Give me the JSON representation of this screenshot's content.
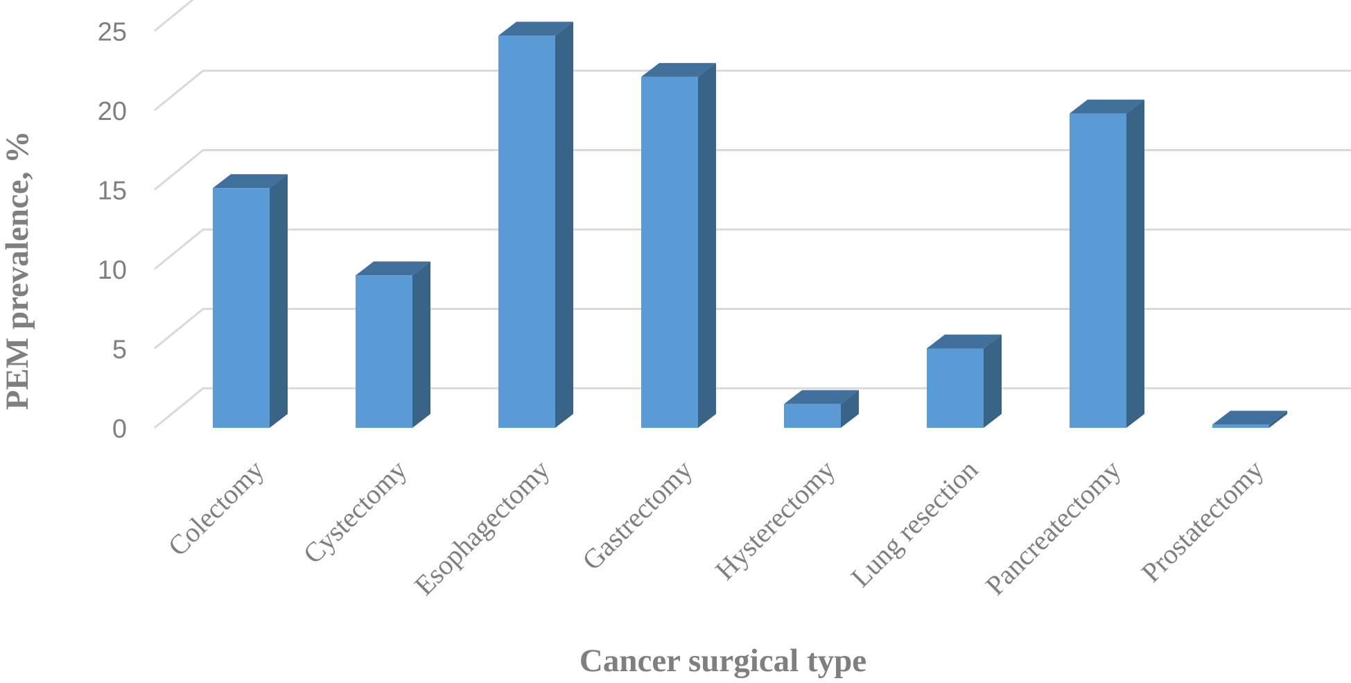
{
  "chart_data": {
    "type": "bar",
    "style": "3d-column",
    "title": "",
    "xlabel": "Cancer surgical type",
    "ylabel": "PEM prevalence, %",
    "categories": [
      "Colectomy",
      "Cystectomy",
      "Esophagectomy",
      "Gastrectomy",
      "Hysterectomy",
      "Lung resection",
      "Pancreatectomy",
      "Prostatectomy"
    ],
    "values": [
      15.1,
      9.6,
      24.7,
      22.1,
      1.5,
      5.0,
      19.8,
      0.2
    ],
    "ylim": [
      0,
      25
    ],
    "yticks": [
      0,
      5,
      10,
      15,
      20,
      25
    ],
    "grid": true,
    "legend": "none",
    "colors": {
      "bar_front": "#5b9bd5",
      "bar_side": "#3a6388",
      "bar_top": "#41709c",
      "grid": "#d9d9d9",
      "text": "#7f7f7f"
    }
  }
}
